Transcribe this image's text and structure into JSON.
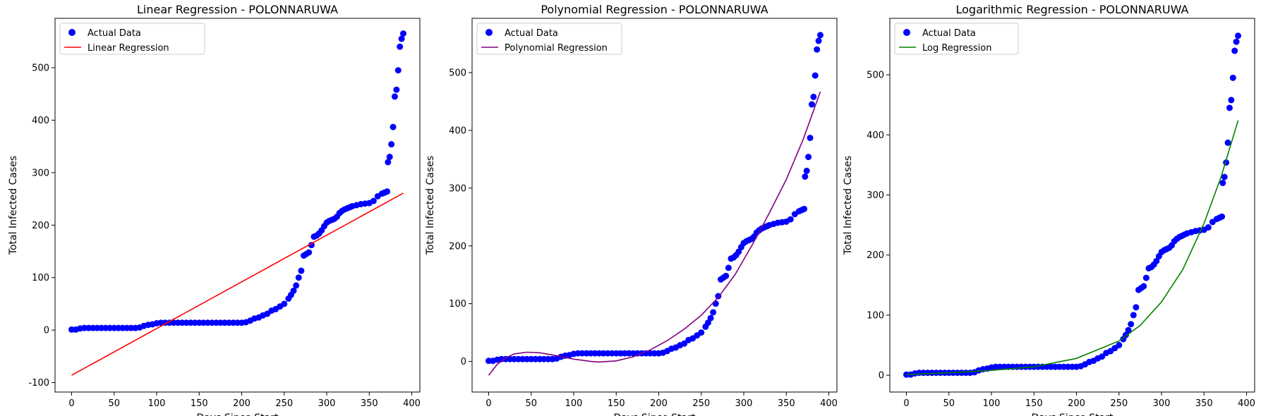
{
  "chart_data": [
    {
      "type": "scatter",
      "title": "Linear Regression - POLONNARUWA",
      "xlabel": "Days Since Start",
      "ylabel": "Total Infected Cases",
      "xlim": [
        -19.5,
        409.5
      ],
      "ylim": [
        -118,
        594
      ],
      "xticks": [
        0,
        50,
        100,
        150,
        200,
        250,
        300,
        350,
        400
      ],
      "yticks": [
        -100,
        0,
        100,
        200,
        300,
        400,
        500
      ],
      "legend": "top-left",
      "series": [
        {
          "name": "Actual Data",
          "kind": "scatter",
          "color": "#0000ff"
        },
        {
          "name": "Linear Regression",
          "kind": "line",
          "color": "#ff0000",
          "fit": "linear",
          "points": [
            [
              0,
              -86
            ],
            [
              390,
              261
            ]
          ]
        }
      ]
    },
    {
      "type": "scatter",
      "title": "Polynomial Regression - POLONNARUWA",
      "xlabel": "Days Since Start",
      "ylabel": "Total Infected Cases",
      "xlim": [
        -19.5,
        409.5
      ],
      "ylim": [
        -53,
        594
      ],
      "xticks": [
        0,
        50,
        100,
        150,
        200,
        250,
        300,
        350,
        400
      ],
      "yticks": [
        0,
        100,
        200,
        300,
        400,
        500
      ],
      "legend": "top-left",
      "series": [
        {
          "name": "Actual Data",
          "kind": "scatter",
          "color": "#0000ff"
        },
        {
          "name": "Polynomial Regression",
          "kind": "line",
          "color": "#800080",
          "fit": "polynomial",
          "points": [
            [
              0,
              -24
            ],
            [
              10,
              -5
            ],
            [
              20,
              6
            ],
            [
              30,
              13
            ],
            [
              45,
              16
            ],
            [
              60,
              15
            ],
            [
              80,
              10
            ],
            [
              100,
              4
            ],
            [
              120,
              0
            ],
            [
              130,
              -1
            ],
            [
              150,
              1
            ],
            [
              170,
              8
            ],
            [
              190,
              20
            ],
            [
              210,
              36
            ],
            [
              230,
              56
            ],
            [
              250,
              80
            ],
            [
              270,
              111
            ],
            [
              290,
              151
            ],
            [
              310,
              202
            ],
            [
              330,
              257
            ],
            [
              350,
              315
            ],
            [
              370,
              385
            ],
            [
              390,
              467
            ]
          ]
        }
      ]
    },
    {
      "type": "scatter",
      "title": "Logarithmic Regression - POLONNARUWA",
      "xlabel": "Days Since Start",
      "ylabel": "Total Infected Cases",
      "xlim": [
        -19.5,
        409.5
      ],
      "ylim": [
        -28,
        594
      ],
      "xticks": [
        0,
        50,
        100,
        150,
        200,
        250,
        300,
        350,
        400
      ],
      "yticks": [
        0,
        100,
        200,
        300,
        400,
        500
      ],
      "legend": "top-left",
      "series": [
        {
          "name": "Actual Data",
          "kind": "scatter",
          "color": "#0000ff"
        },
        {
          "name": "Log Regression",
          "kind": "line",
          "color": "#008000",
          "fit": "exponential",
          "points": [
            [
              0,
              1
            ],
            [
              50,
              4
            ],
            [
              100,
              8
            ],
            [
              150,
              14
            ],
            [
              200,
              28
            ],
            [
              250,
              57
            ],
            [
              275,
              83
            ],
            [
              300,
              122
            ],
            [
              325,
              176
            ],
            [
              350,
              253
            ],
            [
              370,
              330
            ],
            [
              390,
              424
            ]
          ]
        }
      ]
    }
  ],
  "actual_data": {
    "x": [
      0,
      5,
      10,
      15,
      20,
      25,
      30,
      35,
      40,
      45,
      50,
      55,
      60,
      65,
      70,
      75,
      80,
      85,
      90,
      95,
      100,
      105,
      110,
      115,
      120,
      125,
      130,
      135,
      140,
      145,
      150,
      155,
      160,
      165,
      170,
      175,
      180,
      185,
      190,
      195,
      200,
      205,
      210,
      215,
      220,
      225,
      230,
      235,
      240,
      245,
      250,
      255,
      258,
      261,
      264,
      267,
      270,
      273,
      276,
      279,
      282,
      285,
      288,
      291,
      294,
      297,
      300,
      303,
      306,
      309,
      312,
      315,
      318,
      321,
      324,
      327,
      330,
      335,
      340,
      345,
      350,
      355,
      360,
      365,
      368,
      371,
      372,
      374,
      376,
      378,
      380,
      382,
      384,
      386,
      388,
      390
    ],
    "y": [
      1,
      1,
      3,
      4,
      4,
      4,
      4,
      4,
      4,
      4,
      4,
      4,
      4,
      4,
      4,
      4,
      5,
      8,
      10,
      11,
      13,
      14,
      14,
      14,
      14,
      14,
      14,
      14,
      14,
      14,
      14,
      14,
      14,
      14,
      14,
      14,
      14,
      14,
      14,
      14,
      14,
      15,
      18,
      22,
      24,
      28,
      31,
      37,
      40,
      45,
      50,
      60,
      67,
      75,
      85,
      100,
      113,
      142,
      145,
      148,
      162,
      178,
      180,
      184,
      190,
      198,
      205,
      208,
      210,
      212,
      216,
      223,
      227,
      230,
      232,
      234,
      236,
      238,
      240,
      241,
      242,
      246,
      255,
      260,
      262,
      264,
      320,
      330,
      354,
      387,
      445,
      458,
      495,
      540,
      555,
      565
    ]
  }
}
